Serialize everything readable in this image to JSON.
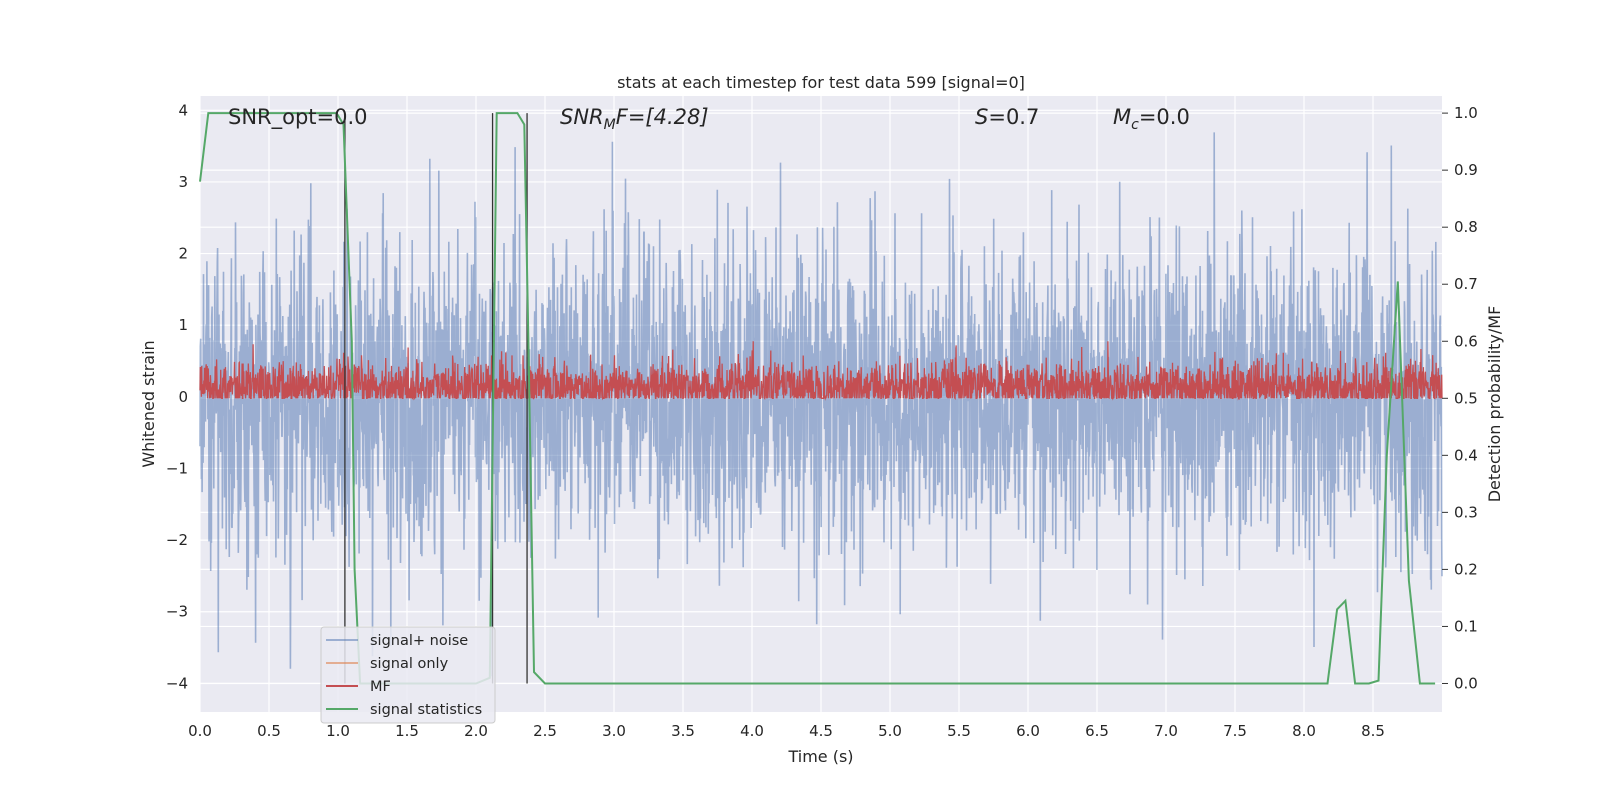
{
  "chart_data": {
    "type": "line",
    "title": "stats at each timestep for test data 599 [signal=0]",
    "xlabel": "Time (s)",
    "ylabel_left": "Whitened strain",
    "ylabel_right": "Detection probability/MF",
    "xlim": [
      0.0,
      9.0
    ],
    "ylim_left": [
      -4.4,
      4.2
    ],
    "ylim_right": [
      -0.05,
      1.03
    ],
    "x_ticks": [
      "0.0",
      "0.5",
      "1.0",
      "1.5",
      "2.0",
      "2.5",
      "3.0",
      "3.5",
      "4.0",
      "4.5",
      "5.0",
      "5.5",
      "6.0",
      "6.5",
      "7.0",
      "7.5",
      "8.0",
      "8.5"
    ],
    "y_ticks_left": [
      "4",
      "3",
      "2",
      "1",
      "0",
      "−1",
      "−2",
      "−3",
      "−4"
    ],
    "y_ticks_right": [
      "1.0",
      "0.9",
      "0.8",
      "0.7",
      "0.6",
      "0.5",
      "0.4",
      "0.3",
      "0.2",
      "0.1",
      "0.0"
    ],
    "grid": true,
    "legend_position": "lower-left",
    "colors": {
      "signal_noise": "#4c72b0",
      "signal_only": "#dd8452",
      "mf": "#c44e52",
      "signal_statistics": "#55a868",
      "plot_bg": "#eaeaf2",
      "vlines": "#333333"
    },
    "annotations": {
      "snr_opt": "SNR_opt=0.0",
      "snr_mf_main": "SNR",
      "snr_mf_sub": "M",
      "snr_mf_rest": "F=[4.28]",
      "s_var": "S",
      "s_rest": "=0.7",
      "mc_main": "M",
      "mc_sub": "c",
      "mc_rest": "=0.0"
    },
    "legend": [
      "signal+ noise",
      "signal only",
      "MF",
      "signal statistics"
    ],
    "series": [
      {
        "name": "signal+ noise",
        "axis": "left",
        "description_values": {
          "x_range": [
            0.0,
            9.0
          ],
          "approx_min": -3.9,
          "approx_max": 3.8,
          "central_band": [
            -1.6,
            1.4
          ]
        }
      },
      {
        "name": "signal only",
        "axis": "left",
        "values": []
      },
      {
        "name": "MF",
        "axis": "right",
        "description_values": {
          "baseline": 0.52,
          "approx_range": [
            0.5,
            0.6
          ]
        }
      },
      {
        "name": "signal statistics",
        "axis": "right",
        "x": [
          0.0,
          0.06,
          0.3,
          0.6,
          0.99,
          1.04,
          1.1,
          1.12,
          1.16,
          1.2,
          2.0,
          2.1,
          2.15,
          2.2,
          2.3,
          2.35,
          2.38,
          2.42,
          2.5,
          3.0,
          8.0,
          8.17,
          8.24,
          8.3,
          8.37,
          8.47,
          8.54,
          8.6,
          8.68,
          8.76,
          8.84,
          8.95
        ],
        "y": [
          0.88,
          1.0,
          1.0,
          1.0,
          1.0,
          0.98,
          0.6,
          0.2,
          0.0,
          0.0,
          0.0,
          0.01,
          1.0,
          1.0,
          1.0,
          0.98,
          0.6,
          0.02,
          0.0,
          0.0,
          0.0,
          0.0,
          0.13,
          0.145,
          0.0,
          0.0,
          0.005,
          0.4,
          0.705,
          0.18,
          0.0,
          0.0
        ]
      }
    ],
    "vertical_lines_x": [
      1.05,
      2.12,
      2.37
    ]
  }
}
